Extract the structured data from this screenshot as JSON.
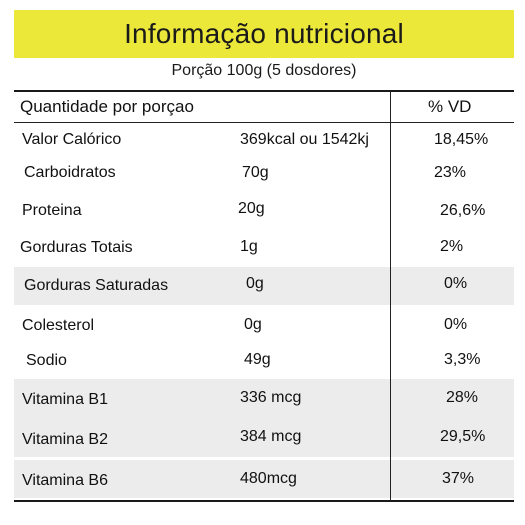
{
  "header": {
    "title": "Informação nutricional",
    "portion": "Porção 100g (5 dosdores)"
  },
  "table": {
    "column_headers": {
      "nutrient": "Quantidade por porçao",
      "vd": "% VD"
    },
    "rows": [
      {
        "name": "Valor Calórico",
        "amount": "369kcal ou 1542kj",
        "vd": "18,45%"
      },
      {
        "name": "Carboidratos",
        "amount": "70g",
        "vd": "23%"
      },
      {
        "name": "Proteina",
        "amount": "20g",
        "vd": "26,6%"
      },
      {
        "name": "Gorduras Totais",
        "amount": "1g",
        "vd": "2%"
      },
      {
        "name": "Gorduras Saturadas",
        "amount": "0g",
        "vd": "0%"
      },
      {
        "name": "Colesterol",
        "amount": "0g",
        "vd": "0%"
      },
      {
        "name": "Sodio",
        "amount": "49g",
        "vd": "3,3%"
      },
      {
        "name": "Vitamina B1",
        "amount": "336 mcg",
        "vd": "28%"
      },
      {
        "name": "Vitamina B2",
        "amount": "384 mcg",
        "vd": "29,5%"
      },
      {
        "name": "Vitamina B6",
        "amount": "480mcg",
        "vd": "37%"
      }
    ]
  },
  "colors": {
    "title_bar": "#ece83a",
    "row_shade": "#ececec",
    "rule": "#1a1a1a"
  }
}
